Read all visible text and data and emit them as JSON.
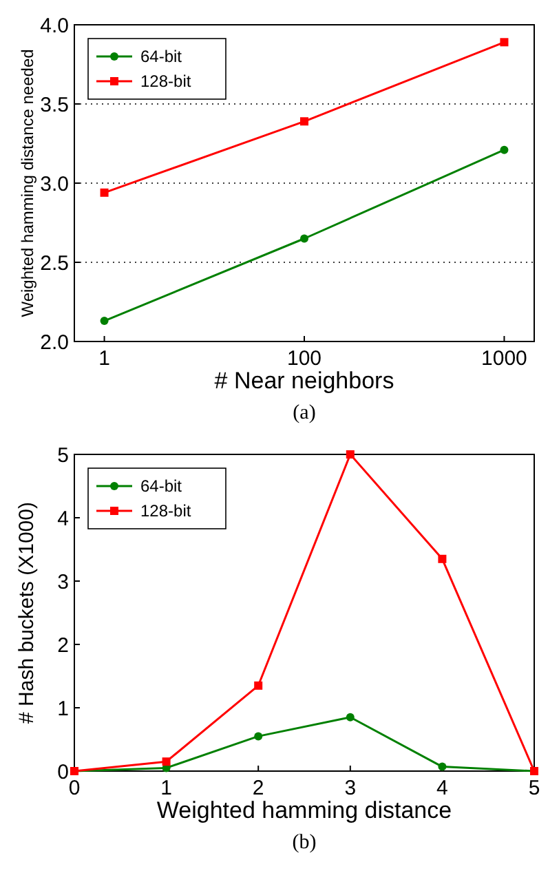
{
  "chart_data": [
    {
      "type": "line",
      "title": "(a)",
      "xlabel": "# Near neighbors",
      "ylabel": "Weighted hamming distance needed",
      "categories": [
        "1",
        "100",
        "1000"
      ],
      "series": [
        {
          "name": "64-bit",
          "color": "#008000",
          "values": [
            2.13,
            2.65,
            3.21
          ],
          "marker": "circle"
        },
        {
          "name": "128-bit",
          "color": "#ff0000",
          "values": [
            2.94,
            3.39,
            3.89
          ],
          "marker": "square"
        }
      ],
      "ylim": [
        2,
        4
      ],
      "yticks": [
        {
          "value": 2,
          "label": "2.0"
        },
        {
          "value": 2.5,
          "label": "2.5"
        },
        {
          "value": 3,
          "label": "3.0"
        },
        {
          "value": 3.5,
          "label": "3.5"
        },
        {
          "value": 4,
          "label": "4.0"
        }
      ],
      "grid": "y",
      "legend": "top left"
    },
    {
      "type": "line",
      "title": "(b)",
      "xlabel": "Weighted hamming distance",
      "ylabel": "# Hash buckets (X1000)",
      "x": [
        0,
        1,
        2,
        3,
        4,
        5
      ],
      "series": [
        {
          "name": "64-bit",
          "color": "#008000",
          "values": [
            0,
            0.05,
            0.55,
            0.85,
            0.07,
            0
          ],
          "marker": "circle"
        },
        {
          "name": "128-bit",
          "color": "#ff0000",
          "values": [
            0,
            0.15,
            1.35,
            5,
            3.35,
            0
          ],
          "marker": "square"
        }
      ],
      "xlim": [
        0,
        5
      ],
      "xticks": [
        0,
        1,
        2,
        3,
        4,
        5
      ],
      "ylim": [
        0,
        5
      ],
      "yticks": [
        0,
        1,
        2,
        3,
        4,
        5
      ],
      "grid": false,
      "legend": "top left"
    }
  ]
}
